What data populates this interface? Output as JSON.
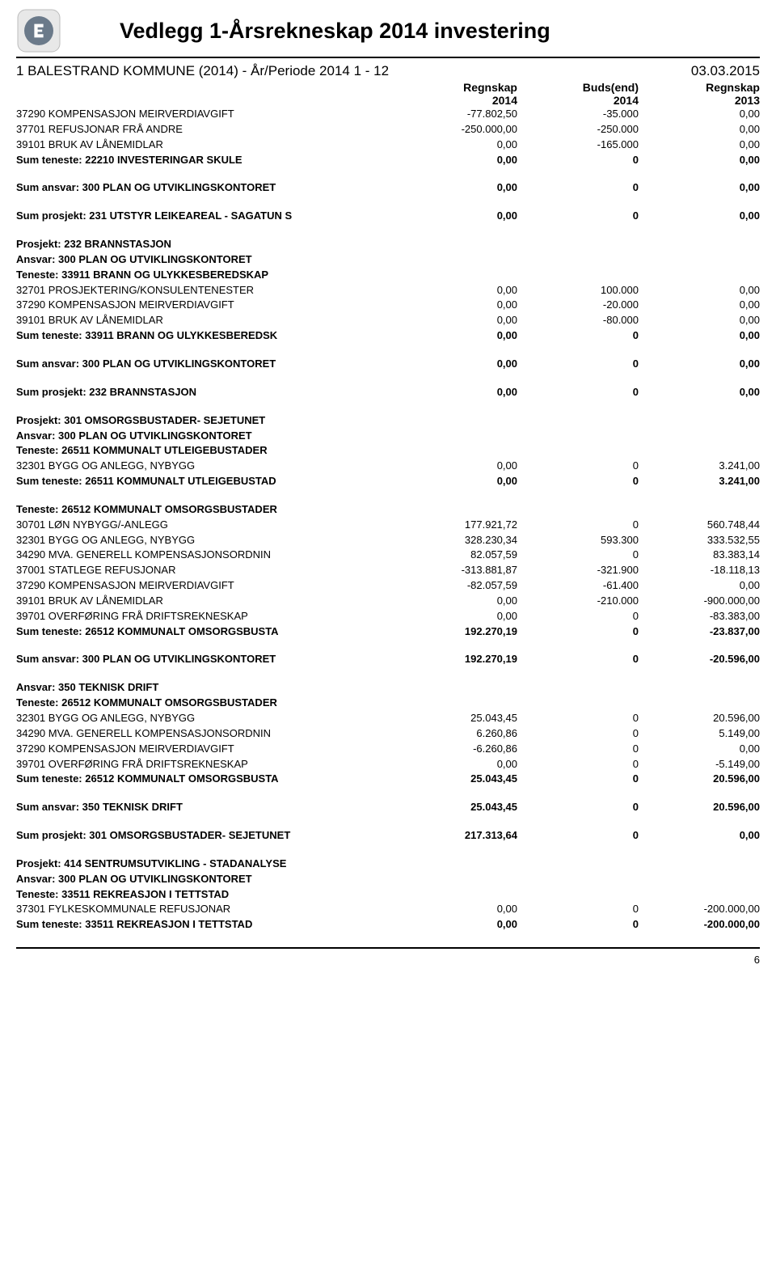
{
  "header": {
    "title": "Vedlegg 1-Årsrekneskap 2014  investering",
    "sub_left": "1 BALESTRAND KOMMUNE (2014) - År/Periode 2014 1 - 12",
    "sub_right": "03.03.2015"
  },
  "columns": {
    "c1_top": "Regnskap",
    "c1_bot": "2014",
    "c2_top": "Buds(end)",
    "c2_bot": "2014",
    "c3_top": "Regnskap",
    "c3_bot": "2013"
  },
  "rows": [
    {
      "type": "data",
      "label": "37290 KOMPENSASJON MEIRVERDIAVGIFT",
      "v1": "-77.802,50",
      "v2": "-35.000",
      "v3": "0,00"
    },
    {
      "type": "data",
      "label": "37701 REFUSJONAR FRÅ ANDRE",
      "v1": "-250.000,00",
      "v2": "-250.000",
      "v3": "0,00"
    },
    {
      "type": "data",
      "label": "39101 BRUK AV LÅNEMIDLAR",
      "v1": "0,00",
      "v2": "-165.000",
      "v3": "0,00"
    },
    {
      "type": "bold",
      "label": "Sum teneste: 22210 INVESTERINGAR SKULE",
      "v1": "0,00",
      "v2": "0",
      "v3": "0,00"
    },
    {
      "type": "gap"
    },
    {
      "type": "bold",
      "label": "Sum ansvar: 300 PLAN OG UTVIKLINGSKONTORET",
      "v1": "0,00",
      "v2": "0",
      "v3": "0,00"
    },
    {
      "type": "gap"
    },
    {
      "type": "bold",
      "label": "Sum prosjekt: 231 UTSTYR LEIKEAREAL - SAGATUN S",
      "v1": "0,00",
      "v2": "0",
      "v3": "0,00"
    },
    {
      "type": "gap"
    },
    {
      "type": "boldlabel",
      "label": "Prosjekt: 232 BRANNSTASJON"
    },
    {
      "type": "boldlabel",
      "label": "Ansvar: 300 PLAN OG UTVIKLINGSKONTORET"
    },
    {
      "type": "boldlabel",
      "label": "Teneste: 33911 BRANN OG ULYKKESBEREDSKAP"
    },
    {
      "type": "data",
      "label": "32701 PROSJEKTERING/KONSULENTENESTER",
      "v1": "0,00",
      "v2": "100.000",
      "v3": "0,00"
    },
    {
      "type": "data",
      "label": "37290 KOMPENSASJON MEIRVERDIAVGIFT",
      "v1": "0,00",
      "v2": "-20.000",
      "v3": "0,00"
    },
    {
      "type": "data",
      "label": "39101 BRUK AV LÅNEMIDLAR",
      "v1": "0,00",
      "v2": "-80.000",
      "v3": "0,00"
    },
    {
      "type": "bold",
      "label": "Sum teneste: 33911 BRANN OG ULYKKESBEREDSK",
      "v1": "0,00",
      "v2": "0",
      "v3": "0,00"
    },
    {
      "type": "gap"
    },
    {
      "type": "bold",
      "label": "Sum ansvar: 300 PLAN OG UTVIKLINGSKONTORET",
      "v1": "0,00",
      "v2": "0",
      "v3": "0,00"
    },
    {
      "type": "gap"
    },
    {
      "type": "bold",
      "label": "Sum prosjekt: 232 BRANNSTASJON",
      "v1": "0,00",
      "v2": "0",
      "v3": "0,00"
    },
    {
      "type": "gap"
    },
    {
      "type": "boldlabel",
      "label": "Prosjekt: 301 OMSORGSBUSTADER- SEJETUNET"
    },
    {
      "type": "boldlabel",
      "label": "Ansvar: 300 PLAN OG UTVIKLINGSKONTORET"
    },
    {
      "type": "boldlabel",
      "label": "Teneste: 26511 KOMMUNALT UTLEIGEBUSTADER"
    },
    {
      "type": "data",
      "label": "32301 BYGG OG ANLEGG, NYBYGG",
      "v1": "0,00",
      "v2": "0",
      "v3": "3.241,00"
    },
    {
      "type": "bold",
      "label": "Sum teneste: 26511 KOMMUNALT UTLEIGEBUSTAD",
      "v1": "0,00",
      "v2": "0",
      "v3": "3.241,00"
    },
    {
      "type": "gap"
    },
    {
      "type": "boldlabel",
      "label": "Teneste: 26512 KOMMUNALT OMSORGSBUSTADER"
    },
    {
      "type": "data",
      "label": "30701 LØN NYBYGG/-ANLEGG",
      "v1": "177.921,72",
      "v2": "0",
      "v3": "560.748,44"
    },
    {
      "type": "data",
      "label": "32301 BYGG OG ANLEGG, NYBYGG",
      "v1": "328.230,34",
      "v2": "593.300",
      "v3": "333.532,55"
    },
    {
      "type": "data",
      "label": "34290 MVA. GENERELL KOMPENSASJONSORDNIN",
      "v1": "82.057,59",
      "v2": "0",
      "v3": "83.383,14"
    },
    {
      "type": "data",
      "label": "37001 STATLEGE REFUSJONAR",
      "v1": "-313.881,87",
      "v2": "-321.900",
      "v3": "-18.118,13"
    },
    {
      "type": "data",
      "label": "37290 KOMPENSASJON MEIRVERDIAVGIFT",
      "v1": "-82.057,59",
      "v2": "-61.400",
      "v3": "0,00"
    },
    {
      "type": "data",
      "label": "39101 BRUK AV LÅNEMIDLAR",
      "v1": "0,00",
      "v2": "-210.000",
      "v3": "-900.000,00"
    },
    {
      "type": "data",
      "label": "39701 OVERFØRING FRÅ DRIFTSREKNESKAP",
      "v1": "0,00",
      "v2": "0",
      "v3": "-83.383,00"
    },
    {
      "type": "bold",
      "label": "Sum teneste: 26512 KOMMUNALT OMSORGSBUSTA",
      "v1": "192.270,19",
      "v2": "0",
      "v3": "-23.837,00"
    },
    {
      "type": "gap"
    },
    {
      "type": "bold",
      "label": "Sum ansvar: 300 PLAN OG UTVIKLINGSKONTORET",
      "v1": "192.270,19",
      "v2": "0",
      "v3": "-20.596,00"
    },
    {
      "type": "gap"
    },
    {
      "type": "boldlabel",
      "label": "Ansvar: 350 TEKNISK DRIFT"
    },
    {
      "type": "boldlabel",
      "label": "Teneste: 26512 KOMMUNALT OMSORGSBUSTADER"
    },
    {
      "type": "data",
      "label": "32301 BYGG OG ANLEGG, NYBYGG",
      "v1": "25.043,45",
      "v2": "0",
      "v3": "20.596,00"
    },
    {
      "type": "data",
      "label": "34290 MVA. GENERELL KOMPENSASJONSORDNIN",
      "v1": "6.260,86",
      "v2": "0",
      "v3": "5.149,00"
    },
    {
      "type": "data",
      "label": "37290 KOMPENSASJON MEIRVERDIAVGIFT",
      "v1": "-6.260,86",
      "v2": "0",
      "v3": "0,00"
    },
    {
      "type": "data",
      "label": "39701 OVERFØRING FRÅ DRIFTSREKNESKAP",
      "v1": "0,00",
      "v2": "0",
      "v3": "-5.149,00"
    },
    {
      "type": "bold",
      "label": "Sum teneste: 26512 KOMMUNALT OMSORGSBUSTA",
      "v1": "25.043,45",
      "v2": "0",
      "v3": "20.596,00"
    },
    {
      "type": "gap"
    },
    {
      "type": "bold",
      "label": "Sum ansvar: 350 TEKNISK DRIFT",
      "v1": "25.043,45",
      "v2": "0",
      "v3": "20.596,00"
    },
    {
      "type": "gap"
    },
    {
      "type": "bold",
      "label": "Sum prosjekt: 301 OMSORGSBUSTADER- SEJETUNET",
      "v1": "217.313,64",
      "v2": "0",
      "v3": "0,00"
    },
    {
      "type": "gap"
    },
    {
      "type": "boldlabel",
      "label": "Prosjekt: 414 SENTRUMSUTVIKLING - STADANALYSE"
    },
    {
      "type": "boldlabel",
      "label": "Ansvar: 300 PLAN OG UTVIKLINGSKONTORET"
    },
    {
      "type": "boldlabel",
      "label": "Teneste: 33511 REKREASJON I TETTSTAD"
    },
    {
      "type": "data",
      "label": "37301 FYLKESKOMMUNALE REFUSJONAR",
      "v1": "0,00",
      "v2": "0",
      "v3": "-200.000,00"
    },
    {
      "type": "bold",
      "label": "Sum teneste: 33511 REKREASJON I TETTSTAD",
      "v1": "0,00",
      "v2": "0",
      "v3": "-200.000,00"
    }
  ],
  "page_number": "6",
  "style": {
    "font_family": "Arial",
    "title_fontsize": 27,
    "sub_fontsize": 17,
    "body_fontsize": 13,
    "text_color": "#000000",
    "background_color": "#ffffff",
    "rule_color": "#000000",
    "num_col_width": 150
  }
}
